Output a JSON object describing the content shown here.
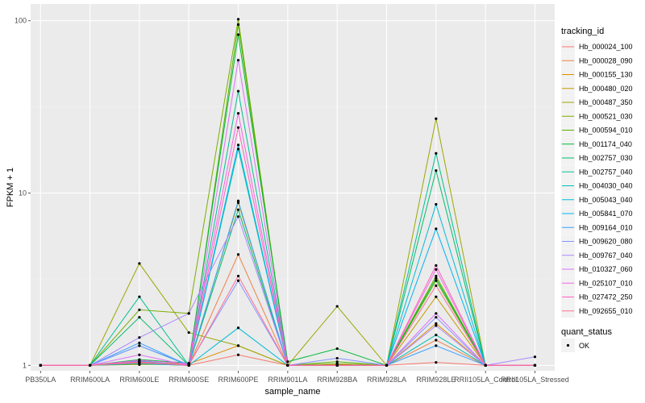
{
  "chart_data": {
    "type": "line",
    "xlabel": "sample_name",
    "ylabel": "FPKM + 1",
    "yscale": "log10",
    "ylim": [
      0.93,
      125
    ],
    "yticks": [
      1,
      10,
      100
    ],
    "ytick_labels": [
      "1",
      "10",
      "100"
    ],
    "grid": true,
    "legend_placement": "right",
    "categories": [
      "PB350LA",
      "RRIM600LA",
      "RRIM600LE",
      "RRIM600SE",
      "RRIM600PE",
      "RRIM901LA",
      "RRIM928BA",
      "RRIM928LA",
      "RRIM928LE",
      "RRII105LA_Control",
      "RRII105LA_Stressed"
    ],
    "legend_title": "tracking_id",
    "series": [
      {
        "name": "Hb_000024_100",
        "color": "#F8766D",
        "values": [
          1,
          1,
          1.02,
          1.0,
          1.15,
          1.0,
          1.0,
          1.0,
          1.04,
          1.0,
          1.0
        ]
      },
      {
        "name": "Hb_000028_090",
        "color": "#EE8044",
        "values": [
          1,
          1,
          1.03,
          1.0,
          4.4,
          1.0,
          1.0,
          1.0,
          1.4,
          1.0,
          1.0
        ]
      },
      {
        "name": "Hb_000155_130",
        "color": "#DE8C00",
        "values": [
          1,
          1,
          1.04,
          1.02,
          1.3,
          1.0,
          1.01,
          1.0,
          1.75,
          1.0,
          1.0
        ]
      },
      {
        "name": "Hb_000480_020",
        "color": "#C49A00",
        "values": [
          1,
          1,
          1.01,
          1.01,
          8.8,
          1.0,
          1.02,
          1.0,
          2.5,
          1.0,
          1.0
        ]
      },
      {
        "name": "Hb_000487_350",
        "color": "#9BA700",
        "values": [
          1,
          1,
          3.9,
          1.55,
          1.3,
          1.0,
          2.2,
          1.0,
          27,
          1.0,
          1.0
        ]
      },
      {
        "name": "Hb_000521_030",
        "color": "#7CAE00",
        "values": [
          1,
          1,
          2.1,
          2.0,
          102,
          1.0,
          1.02,
          1.0,
          3.3,
          1.0,
          1.0
        ]
      },
      {
        "name": "Hb_000594_010",
        "color": "#53B400",
        "values": [
          1,
          1,
          1.05,
          1.0,
          95,
          1.0,
          1.05,
          1.0,
          3.1,
          1.0,
          1.0
        ]
      },
      {
        "name": "Hb_001174_040",
        "color": "#00BA38",
        "values": [
          1,
          1,
          1.08,
          1.03,
          83,
          1.05,
          1.25,
          1.0,
          3.2,
          1.0,
          1.0
        ]
      },
      {
        "name": "Hb_002757_030",
        "color": "#00BE6C",
        "values": [
          1,
          1,
          1.9,
          1.0,
          8.0,
          1.0,
          1.0,
          1.0,
          13.5,
          1.0,
          1.0
        ]
      },
      {
        "name": "Hb_002757_040",
        "color": "#00C094",
        "values": [
          1,
          1,
          2.5,
          1.0,
          39,
          1.0,
          1.0,
          1.0,
          17,
          1.0,
          1.0
        ]
      },
      {
        "name": "Hb_004030_040",
        "color": "#00C0B8",
        "values": [
          1,
          1,
          1.02,
          1.0,
          18,
          1.0,
          1.0,
          1.0,
          1.5,
          1.0,
          1.0
        ]
      },
      {
        "name": "Hb_005043_040",
        "color": "#00BCD8",
        "values": [
          1,
          1,
          1.3,
          1.0,
          1.65,
          1.0,
          1.0,
          1.0,
          8.6,
          1.0,
          1.0
        ]
      },
      {
        "name": "Hb_005841_070",
        "color": "#00B4F0",
        "values": [
          1,
          1,
          1.06,
          1.0,
          19,
          1.0,
          1.0,
          1.0,
          6.2,
          1.0,
          1.0
        ]
      },
      {
        "name": "Hb_009164_010",
        "color": "#35A2FF",
        "values": [
          1,
          1,
          1.35,
          1.0,
          9.0,
          1.0,
          1.0,
          1.0,
          1.3,
          1.0,
          1.0
        ]
      },
      {
        "name": "Hb_009620_080",
        "color": "#8494FF",
        "values": [
          1,
          1,
          1.3,
          1.01,
          3.1,
          1.0,
          1.1,
          1.0,
          1.9,
          1.0,
          1.0
        ]
      },
      {
        "name": "Hb_009767_040",
        "color": "#AA88FF",
        "values": [
          1,
          1,
          1.45,
          2.0,
          7.3,
          1.0,
          1.0,
          1.0,
          1.7,
          1.0,
          1.12
        ]
      },
      {
        "name": "Hb_010327_060",
        "color": "#DB72FB",
        "values": [
          1,
          1,
          1.15,
          1.0,
          59,
          1.0,
          1.0,
          1.0,
          2.0,
          1.0,
          1.0
        ]
      },
      {
        "name": "Hb_025107_010",
        "color": "#F166E8",
        "values": [
          1,
          1,
          1.07,
          1.02,
          29,
          1.0,
          1.0,
          1.0,
          3.6,
          1.0,
          1.0
        ]
      },
      {
        "name": "Hb_027472_250",
        "color": "#FF61C3",
        "values": [
          1,
          1,
          1.04,
          1.0,
          24,
          1.0,
          1.0,
          1.0,
          3.8,
          1.0,
          1.0
        ]
      },
      {
        "name": "Hb_092655_010",
        "color": "#FF6C90",
        "values": [
          1,
          1,
          1.05,
          1.0,
          3.3,
          1.0,
          1.0,
          1.0,
          2.9,
          1.0,
          1.0
        ]
      }
    ],
    "point_legend_title": "quant_status",
    "point_legend_label": "OK",
    "colors": {
      "panel_background": "#EBEBEB",
      "grid_major": "#FFFFFF",
      "grid_minor": "#F2F2F2",
      "point": "#000000"
    }
  }
}
